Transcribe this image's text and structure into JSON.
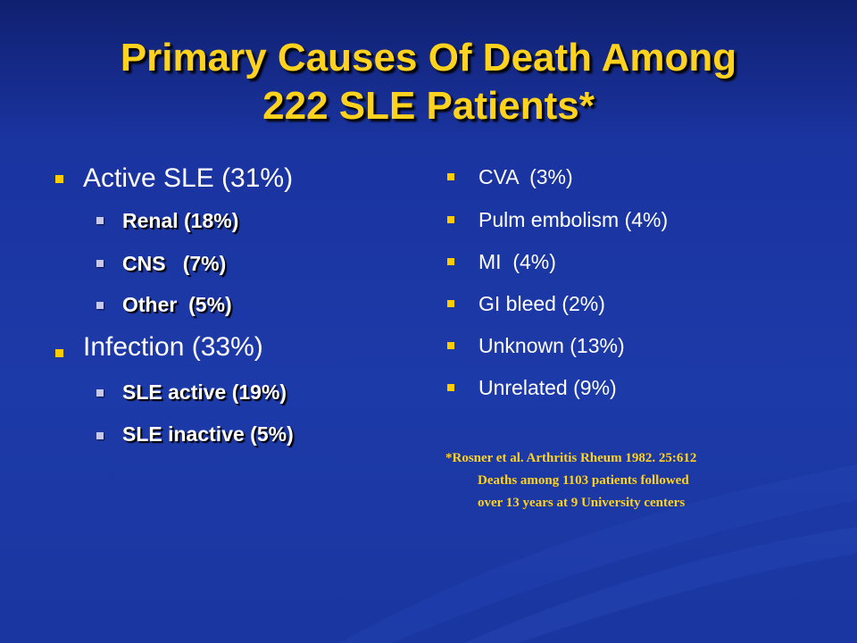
{
  "title": {
    "line1": "Primary Causes Of Death Among",
    "line2": "222 SLE Patients*"
  },
  "left_list": {
    "active": {
      "label": "Active SLE (31%)",
      "subitems": [
        "Renal (18%)",
        "CNS   (7%)",
        "Other  (5%)"
      ]
    },
    "infection": {
      "label": "Infection (33%)",
      "subitems": [
        "SLE active (19%)",
        "SLE inactive (5%)"
      ]
    }
  },
  "right_list": [
    "CVA  (3%)",
    "Pulm embolism (4%)",
    "MI  (4%)",
    "GI bleed (2%)",
    "Unknown (13%)",
    "Unrelated (9%)"
  ],
  "reference": {
    "line1": "*Rosner et al. Arthritis Rheum 1982. 25:612",
    "line2": "Deaths among 1103 patients followed",
    "line3": "over 13 years at 9 University centers"
  },
  "colors": {
    "background": "#1c3aa8",
    "title": "#ffd21e",
    "bullet": "#ffcc00",
    "sub_bullet": "#c8c8ee",
    "text": "#ffffff"
  }
}
